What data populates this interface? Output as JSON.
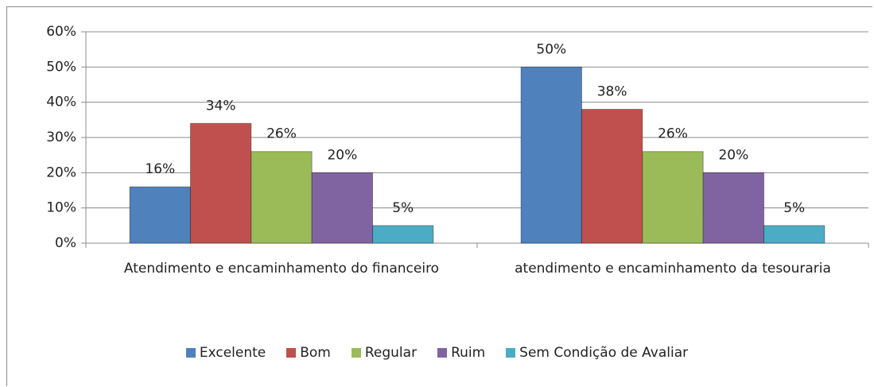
{
  "chart_data": {
    "type": "bar",
    "categories": [
      "Atendimento e encaminhamento do financeiro",
      "atendimento e encaminhamento da tesouraria"
    ],
    "series": [
      {
        "name": "Excelente",
        "color": "#4f81bd",
        "values": [
          16,
          50
        ],
        "value_labels": [
          "16%",
          "50%"
        ]
      },
      {
        "name": "Bom",
        "color": "#c0504d",
        "values": [
          34,
          38
        ],
        "value_labels": [
          "34%",
          "38%"
        ]
      },
      {
        "name": "Regular",
        "color": "#9bbb59",
        "values": [
          26,
          26
        ],
        "value_labels": [
          "26%",
          "26%"
        ]
      },
      {
        "name": "Ruim",
        "color": "#8064a2",
        "values": [
          20,
          20
        ],
        "value_labels": [
          "20%",
          "20%"
        ]
      },
      {
        "name": "Sem Condição de Avaliar",
        "color": "#4bacc6",
        "values": [
          5,
          5
        ],
        "value_labels": [
          "5%",
          "5%"
        ]
      }
    ],
    "ylim": [
      0,
      60
    ],
    "yticks": [
      {
        "value": 0,
        "label": "0%"
      },
      {
        "value": 10,
        "label": "10%"
      },
      {
        "value": 20,
        "label": "20%"
      },
      {
        "value": 30,
        "label": "30%"
      },
      {
        "value": 40,
        "label": "40%"
      },
      {
        "value": 50,
        "label": "50%"
      },
      {
        "value": 60,
        "label": "60%"
      }
    ],
    "grid": true,
    "legend": "bottom"
  }
}
